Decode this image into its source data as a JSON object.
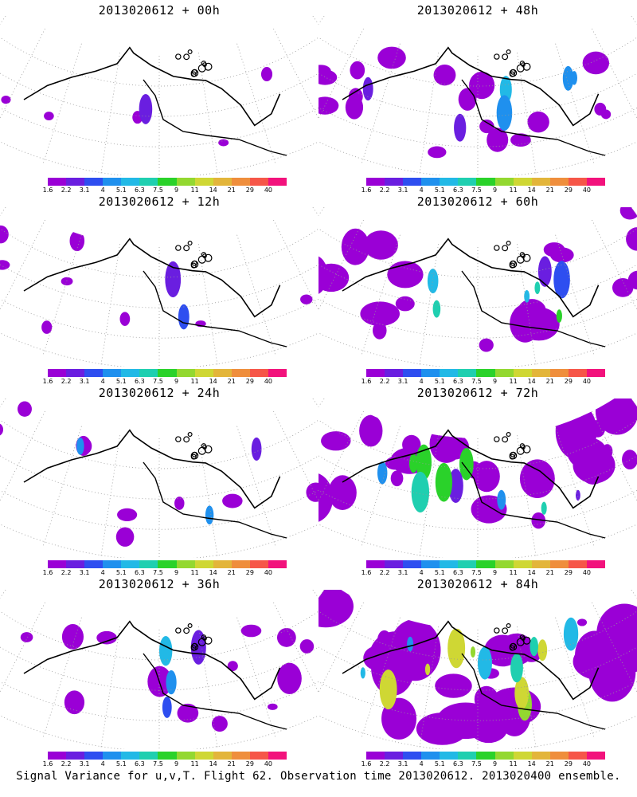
{
  "footer": "Signal Variance for u,v,T. Flight 62. Observation time 2013020612. 2013020400 ensemble.",
  "colorbar": {
    "labels": [
      "1.6",
      "2.2",
      "3.1",
      "4",
      "5.1",
      "6.3",
      "7.5",
      "9",
      "11",
      "14",
      "21",
      "29",
      "40"
    ],
    "colors": [
      "#9a00d6",
      "#6a1ee0",
      "#2e4ef0",
      "#1f90ee",
      "#22b9e6",
      "#1fcfb0",
      "#2ad22a",
      "#93d830",
      "#cfd734",
      "#e3b53a",
      "#ef8e3c",
      "#f65648",
      "#f2127c"
    ]
  },
  "chart_data": [
    {
      "type": "heatmap",
      "title": "2013020612 + 00h",
      "intensity": 0.05
    },
    {
      "type": "heatmap",
      "title": "2013020612 + 48h",
      "intensity": 0.45
    },
    {
      "type": "heatmap",
      "title": "2013020612 + 12h",
      "intensity": 0.12
    },
    {
      "type": "heatmap",
      "title": "2013020612 + 60h",
      "intensity": 0.6
    },
    {
      "type": "heatmap",
      "title": "2013020612 + 24h",
      "intensity": 0.2
    },
    {
      "type": "heatmap",
      "title": "2013020612 + 72h",
      "intensity": 0.75
    },
    {
      "type": "heatmap",
      "title": "2013020612 + 36h",
      "intensity": 0.3
    },
    {
      "type": "heatmap",
      "title": "2013020612 + 84h",
      "intensity": 0.9
    }
  ]
}
